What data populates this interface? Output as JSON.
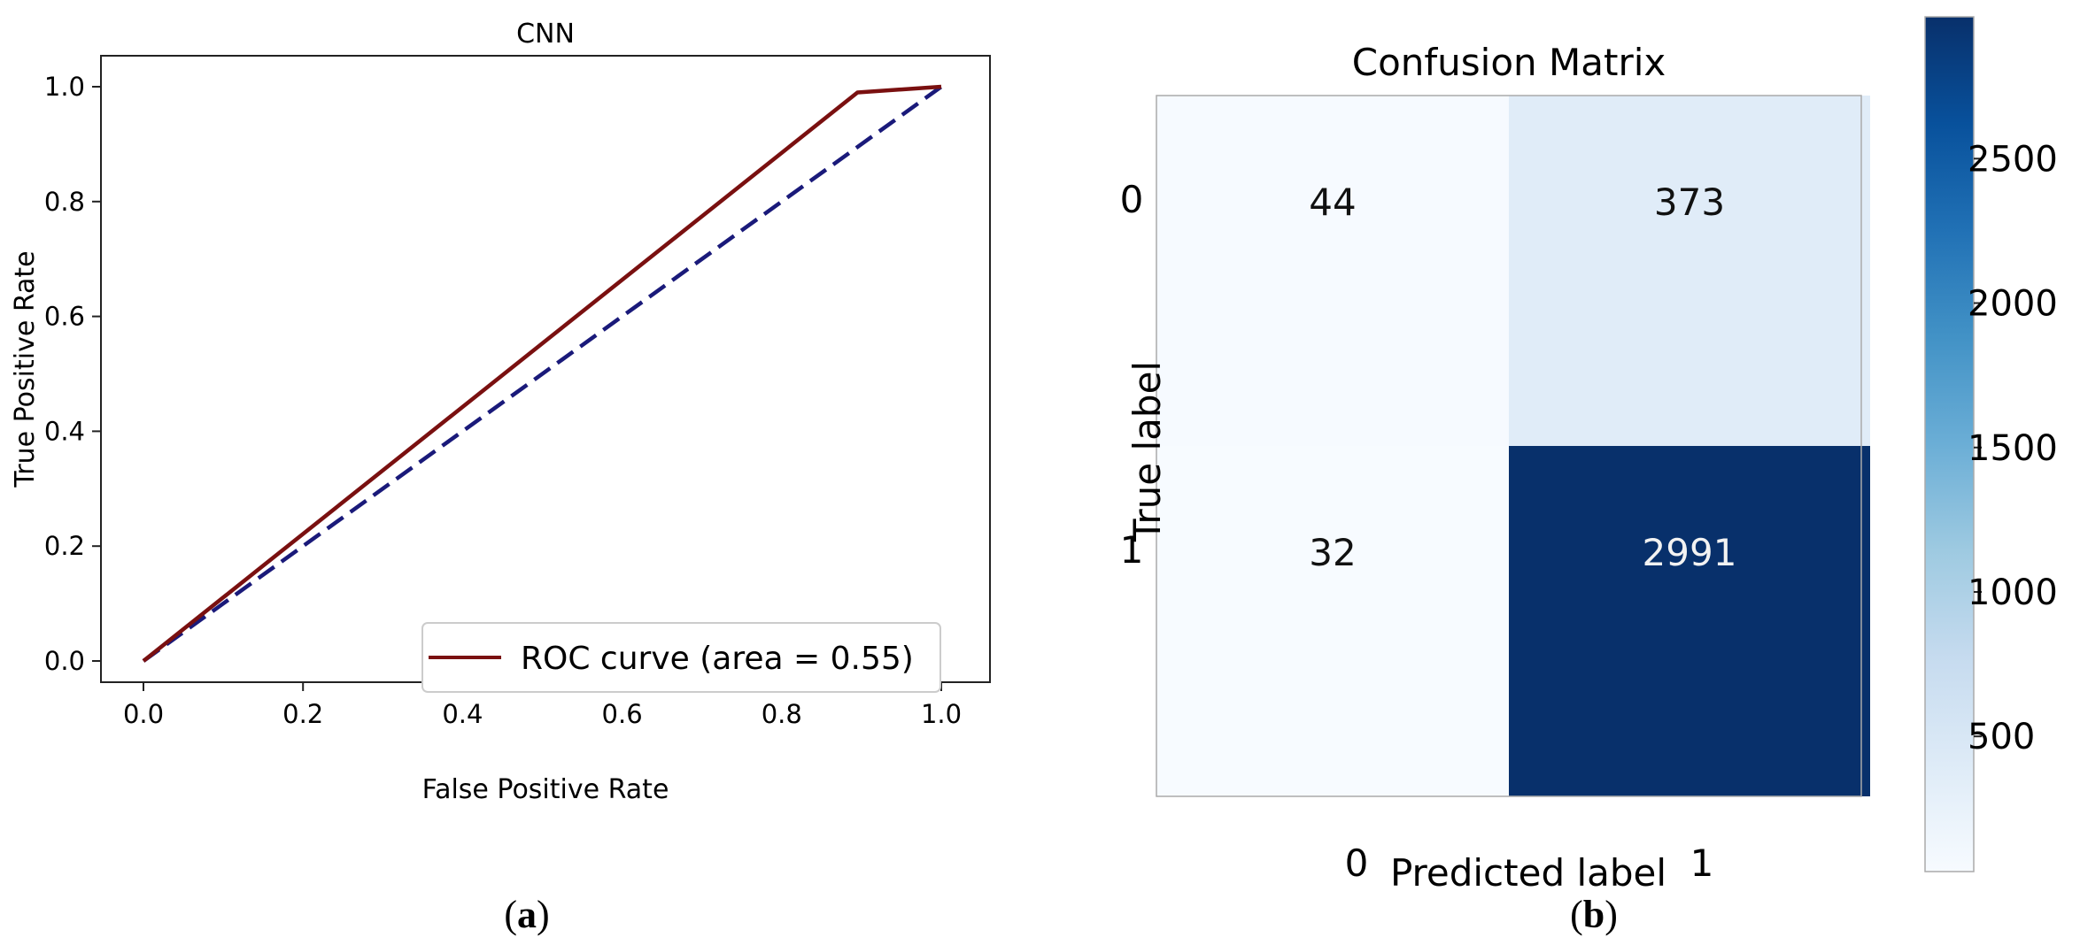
{
  "panels": {
    "a": {
      "caption_letter": "a"
    },
    "b": {
      "caption_letter": "b"
    }
  },
  "chart_data": [
    {
      "type": "line",
      "title": "CNN",
      "xlabel": "False Positive Rate",
      "ylabel": "True Positive Rate",
      "xlim": [
        0.0,
        1.0
      ],
      "ylim": [
        0.0,
        1.0
      ],
      "xticks": [
        "0.0",
        "0.2",
        "0.4",
        "0.6",
        "0.8",
        "1.0"
      ],
      "yticks": [
        "0.0",
        "0.2",
        "0.4",
        "0.6",
        "0.8",
        "1.0"
      ],
      "grid": false,
      "legend_position": "lower-right",
      "series": [
        {
          "name": "ROC curve (area = 0.55)",
          "color": "#7a1010",
          "style": "solid",
          "x": [
            0.0,
            0.895,
            1.0
          ],
          "y": [
            0.0,
            0.99,
            1.0
          ]
        },
        {
          "color": "#1a1a7a",
          "style": "dashed",
          "x": [
            0.0,
            1.0
          ],
          "y": [
            0.0,
            1.0
          ]
        }
      ]
    },
    {
      "type": "heatmap",
      "title": "Confusion Matrix",
      "xlabel": "Predicted label",
      "ylabel": "True label",
      "x_categories": [
        "0",
        "1"
      ],
      "y_categories": [
        "0",
        "1"
      ],
      "values": [
        [
          44,
          373
        ],
        [
          32,
          2991
        ]
      ],
      "colormap": "Blues",
      "colorbar": {
        "range": [
          32,
          2991
        ],
        "ticks": [
          "500",
          "1000",
          "1500",
          "2000",
          "2500"
        ],
        "tick_values": [
          500,
          1000,
          1500,
          2000,
          2500
        ]
      }
    }
  ]
}
